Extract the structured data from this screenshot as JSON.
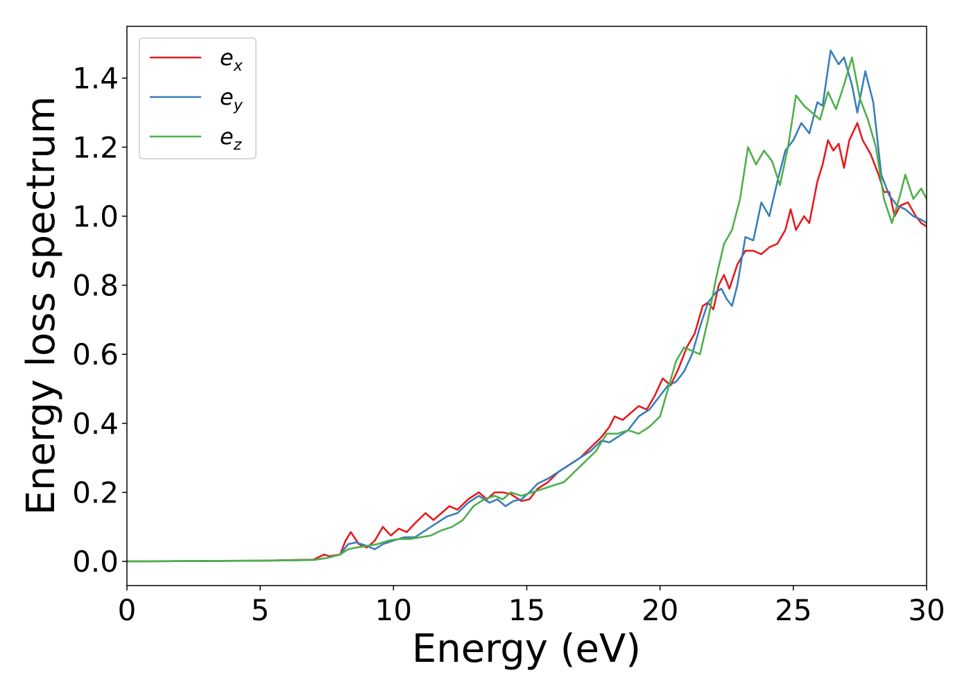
{
  "chart_data": {
    "type": "line",
    "title": "",
    "xlabel": "Energy (eV)",
    "ylabel": "Energy loss spectrum",
    "xlim": [
      0,
      30
    ],
    "ylim": [
      -0.07,
      1.55
    ],
    "grid": false,
    "legend_position": "top-left",
    "x_ticks": [
      "0",
      "5",
      "10",
      "15",
      "20",
      "25",
      "30"
    ],
    "y_ticks": [
      "0.0",
      "0.2",
      "0.4",
      "0.6",
      "0.8",
      "1.0",
      "1.2",
      "1.4"
    ],
    "series": [
      {
        "name": "e_x",
        "label_main": "e",
        "label_sub": "x",
        "color": "#e41a1c",
        "points": [
          [
            0,
            0
          ],
          [
            5,
            0.002
          ],
          [
            7,
            0.005
          ],
          [
            7.4,
            0.02
          ],
          [
            7.6,
            0.015
          ],
          [
            8,
            0.02
          ],
          [
            8.2,
            0.06
          ],
          [
            8.4,
            0.085
          ],
          [
            8.7,
            0.05
          ],
          [
            9,
            0.04
          ],
          [
            9.3,
            0.06
          ],
          [
            9.6,
            0.1
          ],
          [
            9.9,
            0.075
          ],
          [
            10.2,
            0.095
          ],
          [
            10.5,
            0.085
          ],
          [
            10.8,
            0.11
          ],
          [
            11.2,
            0.14
          ],
          [
            11.5,
            0.12
          ],
          [
            11.8,
            0.14
          ],
          [
            12.1,
            0.16
          ],
          [
            12.4,
            0.15
          ],
          [
            12.8,
            0.18
          ],
          [
            13.2,
            0.2
          ],
          [
            13.5,
            0.18
          ],
          [
            13.8,
            0.2
          ],
          [
            14.1,
            0.2
          ],
          [
            14.4,
            0.195
          ],
          [
            14.8,
            0.175
          ],
          [
            15.1,
            0.18
          ],
          [
            15.4,
            0.21
          ],
          [
            15.8,
            0.23
          ],
          [
            16.2,
            0.26
          ],
          [
            16.6,
            0.28
          ],
          [
            17,
            0.3
          ],
          [
            17.4,
            0.33
          ],
          [
            17.8,
            0.36
          ],
          [
            18.1,
            0.39
          ],
          [
            18.3,
            0.42
          ],
          [
            18.6,
            0.41
          ],
          [
            18.9,
            0.43
          ],
          [
            19.2,
            0.45
          ],
          [
            19.5,
            0.44
          ],
          [
            19.8,
            0.48
          ],
          [
            20.1,
            0.53
          ],
          [
            20.4,
            0.51
          ],
          [
            20.7,
            0.56
          ],
          [
            21,
            0.62
          ],
          [
            21.3,
            0.66
          ],
          [
            21.6,
            0.74
          ],
          [
            21.8,
            0.75
          ],
          [
            22,
            0.73
          ],
          [
            22.2,
            0.8
          ],
          [
            22.4,
            0.83
          ],
          [
            22.6,
            0.79
          ],
          [
            22.9,
            0.86
          ],
          [
            23.2,
            0.9
          ],
          [
            23.5,
            0.9
          ],
          [
            23.8,
            0.89
          ],
          [
            24.1,
            0.91
          ],
          [
            24.4,
            0.92
          ],
          [
            24.7,
            0.96
          ],
          [
            24.9,
            1.02
          ],
          [
            25.1,
            0.96
          ],
          [
            25.4,
            1.0
          ],
          [
            25.6,
            0.98
          ],
          [
            25.9,
            1.1
          ],
          [
            26.1,
            1.15
          ],
          [
            26.3,
            1.22
          ],
          [
            26.5,
            1.19
          ],
          [
            26.7,
            1.21
          ],
          [
            26.9,
            1.14
          ],
          [
            27.1,
            1.22
          ],
          [
            27.4,
            1.27
          ],
          [
            27.6,
            1.22
          ],
          [
            27.9,
            1.18
          ],
          [
            28.2,
            1.12
          ],
          [
            28.4,
            1.07
          ],
          [
            28.6,
            1.07
          ],
          [
            28.8,
            1.0
          ],
          [
            29,
            1.03
          ],
          [
            29.3,
            1.04
          ],
          [
            29.6,
            1.0
          ],
          [
            29.8,
            0.98
          ],
          [
            30,
            0.97
          ]
        ]
      },
      {
        "name": "e_y",
        "label_main": "e",
        "label_sub": "y",
        "color": "#377eb8",
        "points": [
          [
            0,
            0
          ],
          [
            5,
            0.002
          ],
          [
            7,
            0.004
          ],
          [
            7.5,
            0.01
          ],
          [
            8,
            0.02
          ],
          [
            8.3,
            0.05
          ],
          [
            8.6,
            0.055
          ],
          [
            9,
            0.045
          ],
          [
            9.3,
            0.035
          ],
          [
            9.6,
            0.05
          ],
          [
            10,
            0.06
          ],
          [
            10.4,
            0.07
          ],
          [
            10.8,
            0.07
          ],
          [
            11.2,
            0.09
          ],
          [
            11.6,
            0.11
          ],
          [
            12,
            0.13
          ],
          [
            12.4,
            0.14
          ],
          [
            12.8,
            0.17
          ],
          [
            13.2,
            0.19
          ],
          [
            13.6,
            0.17
          ],
          [
            13.9,
            0.18
          ],
          [
            14.2,
            0.16
          ],
          [
            14.5,
            0.175
          ],
          [
            14.8,
            0.18
          ],
          [
            15.1,
            0.2
          ],
          [
            15.4,
            0.225
          ],
          [
            15.8,
            0.24
          ],
          [
            16.2,
            0.26
          ],
          [
            16.6,
            0.28
          ],
          [
            17,
            0.3
          ],
          [
            17.4,
            0.32
          ],
          [
            17.8,
            0.35
          ],
          [
            18.1,
            0.345
          ],
          [
            18.4,
            0.36
          ],
          [
            18.8,
            0.38
          ],
          [
            19.2,
            0.42
          ],
          [
            19.6,
            0.44
          ],
          [
            20,
            0.48
          ],
          [
            20.3,
            0.51
          ],
          [
            20.6,
            0.52
          ],
          [
            20.9,
            0.55
          ],
          [
            21.2,
            0.6
          ],
          [
            21.5,
            0.68
          ],
          [
            21.8,
            0.75
          ],
          [
            22.1,
            0.78
          ],
          [
            22.3,
            0.79
          ],
          [
            22.5,
            0.76
          ],
          [
            22.7,
            0.74
          ],
          [
            22.9,
            0.8
          ],
          [
            23.2,
            0.94
          ],
          [
            23.5,
            0.93
          ],
          [
            23.8,
            1.04
          ],
          [
            24.1,
            1.0
          ],
          [
            24.4,
            1.1
          ],
          [
            24.7,
            1.19
          ],
          [
            25,
            1.22
          ],
          [
            25.3,
            1.27
          ],
          [
            25.6,
            1.24
          ],
          [
            25.9,
            1.33
          ],
          [
            26.1,
            1.32
          ],
          [
            26.4,
            1.48
          ],
          [
            26.7,
            1.44
          ],
          [
            26.9,
            1.46
          ],
          [
            27.2,
            1.38
          ],
          [
            27.4,
            1.3
          ],
          [
            27.7,
            1.42
          ],
          [
            28,
            1.33
          ],
          [
            28.3,
            1.12
          ],
          [
            28.6,
            1.06
          ],
          [
            28.9,
            1.03
          ],
          [
            29.2,
            1.02
          ],
          [
            29.5,
            1.0
          ],
          [
            29.8,
            0.99
          ],
          [
            30,
            0.98
          ]
        ]
      },
      {
        "name": "e_z",
        "label_main": "e",
        "label_sub": "z",
        "color": "#4daf4a",
        "points": [
          [
            0,
            0
          ],
          [
            5,
            0.002
          ],
          [
            7,
            0.004
          ],
          [
            7.5,
            0.01
          ],
          [
            8,
            0.02
          ],
          [
            8.3,
            0.035
          ],
          [
            8.6,
            0.04
          ],
          [
            9,
            0.045
          ],
          [
            9.4,
            0.05
          ],
          [
            9.8,
            0.06
          ],
          [
            10.2,
            0.065
          ],
          [
            10.6,
            0.065
          ],
          [
            11,
            0.07
          ],
          [
            11.4,
            0.075
          ],
          [
            11.8,
            0.09
          ],
          [
            12.2,
            0.1
          ],
          [
            12.6,
            0.12
          ],
          [
            13,
            0.16
          ],
          [
            13.4,
            0.18
          ],
          [
            13.8,
            0.19
          ],
          [
            14.1,
            0.18
          ],
          [
            14.4,
            0.2
          ],
          [
            14.8,
            0.19
          ],
          [
            15.2,
            0.2
          ],
          [
            15.6,
            0.21
          ],
          [
            16,
            0.22
          ],
          [
            16.4,
            0.23
          ],
          [
            16.8,
            0.26
          ],
          [
            17.2,
            0.29
          ],
          [
            17.6,
            0.32
          ],
          [
            18,
            0.37
          ],
          [
            18.4,
            0.37
          ],
          [
            18.8,
            0.38
          ],
          [
            19.2,
            0.37
          ],
          [
            19.6,
            0.39
          ],
          [
            20,
            0.42
          ],
          [
            20.3,
            0.5
          ],
          [
            20.6,
            0.58
          ],
          [
            20.9,
            0.62
          ],
          [
            21.2,
            0.61
          ],
          [
            21.5,
            0.6
          ],
          [
            21.8,
            0.7
          ],
          [
            22.1,
            0.82
          ],
          [
            22.4,
            0.92
          ],
          [
            22.7,
            0.96
          ],
          [
            23,
            1.05
          ],
          [
            23.3,
            1.2
          ],
          [
            23.6,
            1.15
          ],
          [
            23.9,
            1.19
          ],
          [
            24.2,
            1.16
          ],
          [
            24.5,
            1.09
          ],
          [
            24.8,
            1.2
          ],
          [
            25.1,
            1.35
          ],
          [
            25.4,
            1.32
          ],
          [
            25.7,
            1.3
          ],
          [
            26,
            1.28
          ],
          [
            26.3,
            1.36
          ],
          [
            26.6,
            1.31
          ],
          [
            26.9,
            1.38
          ],
          [
            27.2,
            1.46
          ],
          [
            27.5,
            1.34
          ],
          [
            27.8,
            1.28
          ],
          [
            28.1,
            1.2
          ],
          [
            28.4,
            1.05
          ],
          [
            28.7,
            0.98
          ],
          [
            29,
            1.06
          ],
          [
            29.2,
            1.12
          ],
          [
            29.5,
            1.05
          ],
          [
            29.8,
            1.08
          ],
          [
            30,
            1.05
          ]
        ]
      }
    ]
  }
}
